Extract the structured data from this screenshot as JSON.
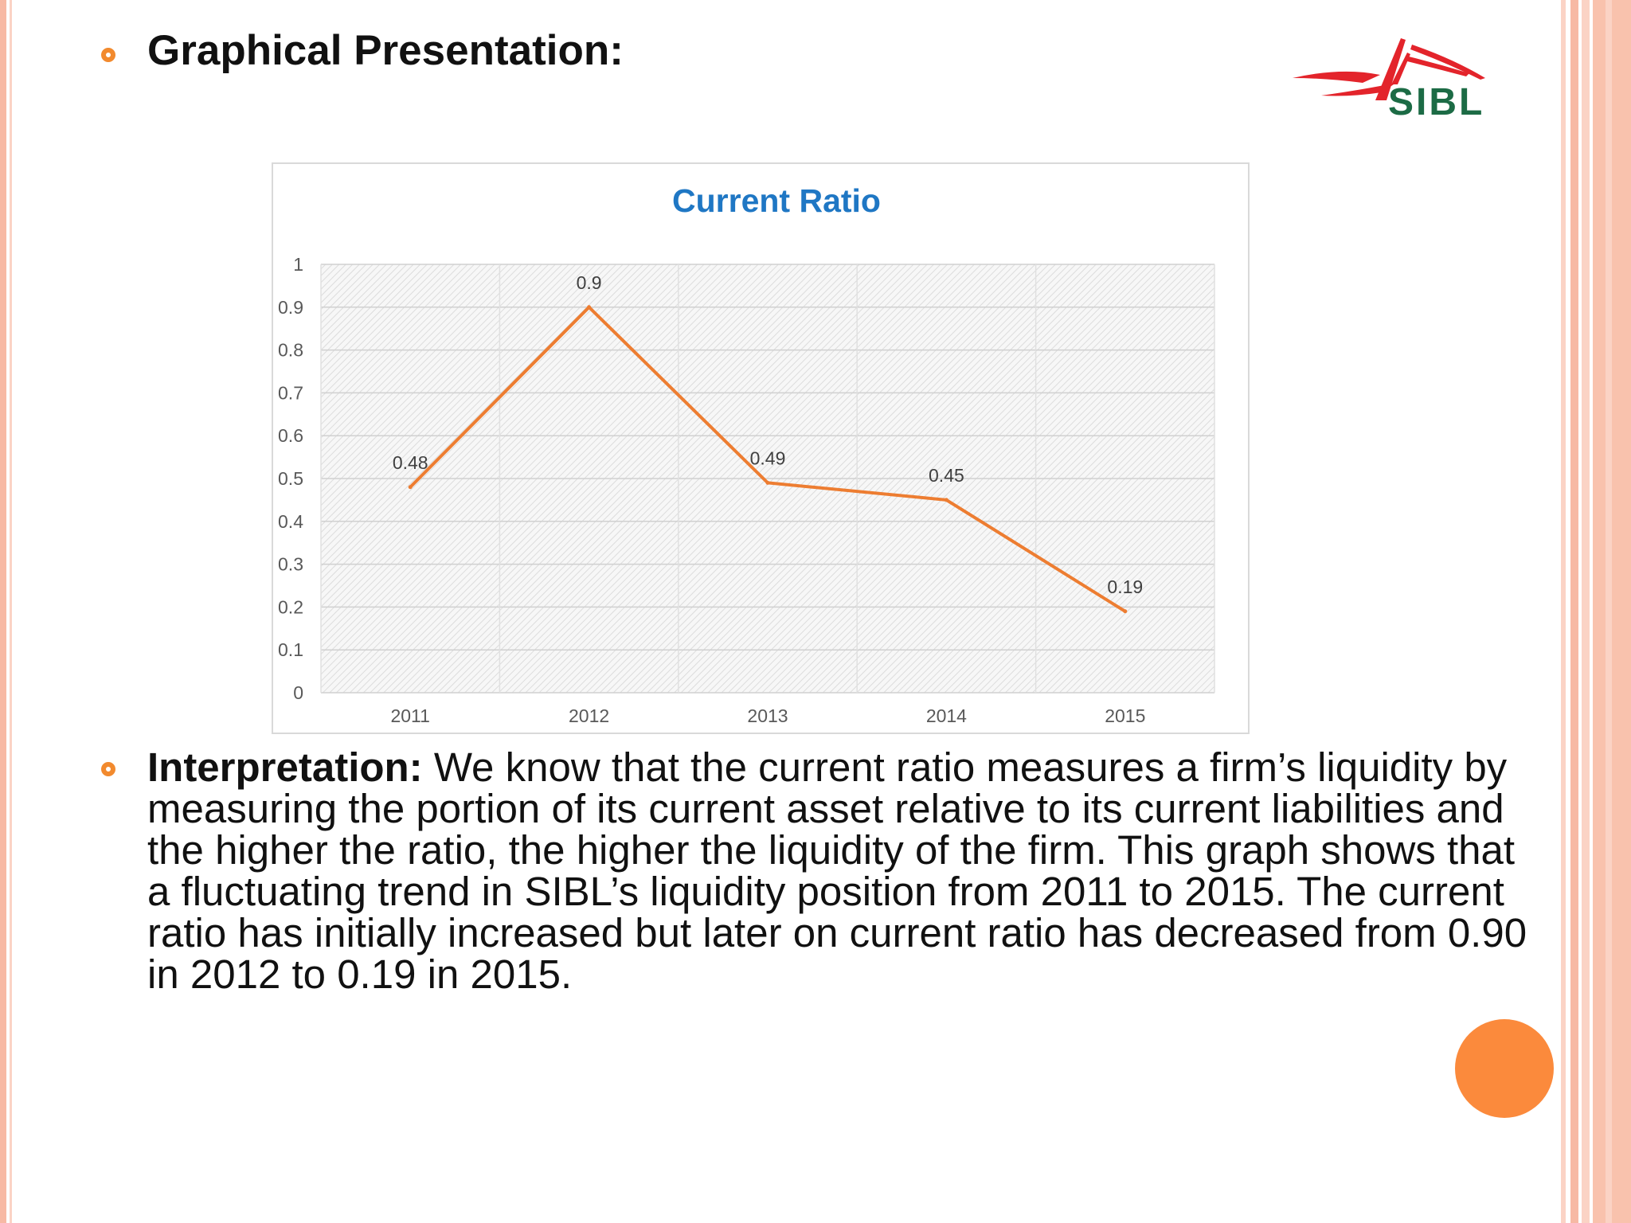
{
  "slide": {
    "heading": "Graphical Presentation:",
    "interpretation_label": "Interpretation:",
    "interpretation_text": " We know that the current ratio measures a firm’s liquidity by measuring the portion of its current asset relative to its current liabilities and the higher the ratio, the higher the liquidity of the firm. This graph shows that a fluctuating trend in SIBL’s liquidity position from 2011 to 2015. The current ratio has initially increased but later on current ratio has decreased from 0.90 in 2012 to 0.19 in 2015."
  },
  "logo": {
    "text": "SIBL",
    "icon": "sibl-logo"
  },
  "colors": {
    "accent": "#f28a2e",
    "line": "#ed7d31",
    "title": "#1f77c4",
    "logo_red": "#e3242b",
    "logo_green": "#1c6b45",
    "circle": "#fb8a3c"
  },
  "chart_data": {
    "type": "line",
    "title": "Current Ratio",
    "categories": [
      "2011",
      "2012",
      "2013",
      "2014",
      "2015"
    ],
    "values": [
      0.48,
      0.9,
      0.49,
      0.45,
      0.19
    ],
    "data_labels": [
      "0.48",
      "0.9",
      "0.49",
      "0.45",
      "0.19"
    ],
    "yticks": [
      "0",
      "0.1",
      "0.2",
      "0.3",
      "0.4",
      "0.5",
      "0.6",
      "0.7",
      "0.8",
      "0.9",
      "1"
    ],
    "ylim": [
      0,
      1
    ],
    "grid": true,
    "legend": "none",
    "xlabel": "",
    "ylabel": ""
  }
}
